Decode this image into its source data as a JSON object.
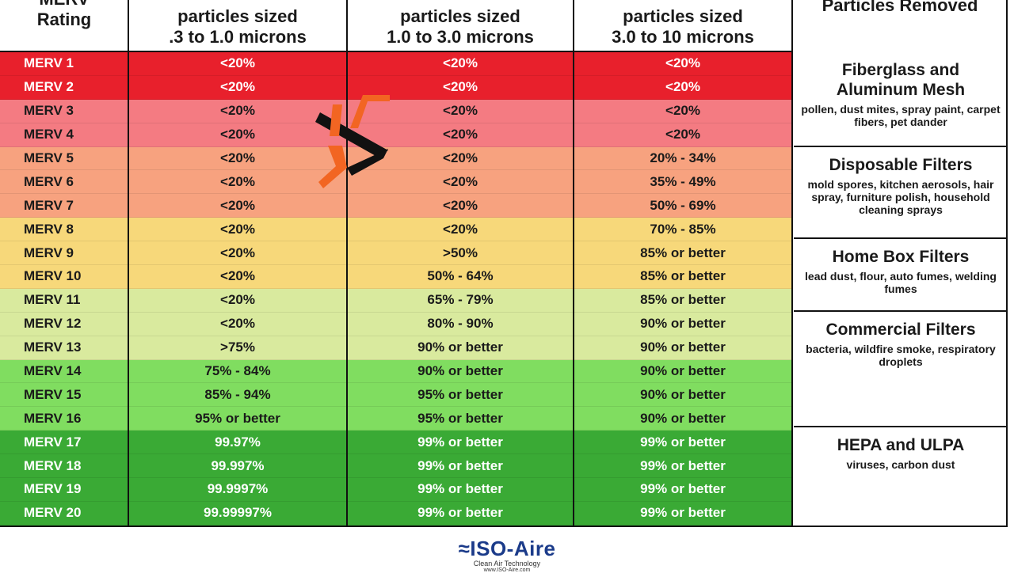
{
  "header": {
    "rating": "Rating",
    "rating_cut": "MERV",
    "col1_line1": "particles sized",
    "col1_line2": ".3 to 1.0 microns",
    "col2_line1": "particles sized",
    "col2_line2": "1.0 to 3.0 microns",
    "col3_line1": "particles sized",
    "col3_line2": "3.0 to 10 microns",
    "col4_line1": "Particles Removed"
  },
  "rows": [
    {
      "merv": "MERV 1",
      "c1": "<20%",
      "c2": "<20%",
      "c3": "<20%",
      "bg": "#e8202c",
      "tone": "light"
    },
    {
      "merv": "MERV 2",
      "c1": "<20%",
      "c2": "<20%",
      "c3": "<20%",
      "bg": "#e8202c",
      "tone": "light"
    },
    {
      "merv": "MERV 3",
      "c1": "<20%",
      "c2": "<20%",
      "c3": "<20%",
      "bg": "#f47b82",
      "tone": "dark"
    },
    {
      "merv": "MERV 4",
      "c1": "<20%",
      "c2": "<20%",
      "c3": "<20%",
      "bg": "#f47b82",
      "tone": "dark"
    },
    {
      "merv": "MERV 5",
      "c1": "<20%",
      "c2": "<20%",
      "c3": "20% - 34%",
      "bg": "#f7a27f",
      "tone": "dark"
    },
    {
      "merv": "MERV 6",
      "c1": "<20%",
      "c2": "<20%",
      "c3": "35% - 49%",
      "bg": "#f7a27f",
      "tone": "dark"
    },
    {
      "merv": "MERV 7",
      "c1": "<20%",
      "c2": "<20%",
      "c3": "50% - 69%",
      "bg": "#f7a27f",
      "tone": "dark"
    },
    {
      "merv": "MERV 8",
      "c1": "<20%",
      "c2": "<20%",
      "c3": "70% - 85%",
      "bg": "#f7d87a",
      "tone": "dark"
    },
    {
      "merv": "MERV 9",
      "c1": "<20%",
      "c2": ">50%",
      "c3": "85% or better",
      "bg": "#f7d87a",
      "tone": "dark"
    },
    {
      "merv": "MERV 10",
      "c1": "<20%",
      "c2": "50% - 64%",
      "c3": "85% or better",
      "bg": "#f7d87a",
      "tone": "dark"
    },
    {
      "merv": "MERV 11",
      "c1": "<20%",
      "c2": "65% - 79%",
      "c3": "85% or better",
      "bg": "#d9ea9e",
      "tone": "dark"
    },
    {
      "merv": "MERV 12",
      "c1": "<20%",
      "c2": "80% - 90%",
      "c3": "90% or better",
      "bg": "#d9ea9e",
      "tone": "dark"
    },
    {
      "merv": "MERV 13",
      "c1": ">75%",
      "c2": "90% or better",
      "c3": "90% or better",
      "bg": "#d9ea9e",
      "tone": "dark"
    },
    {
      "merv": "MERV 14",
      "c1": "75% - 84%",
      "c2": "90% or better",
      "c3": "90% or better",
      "bg": "#80dd60",
      "tone": "dark"
    },
    {
      "merv": "MERV 15",
      "c1": "85% - 94%",
      "c2": "95% or better",
      "c3": "90% or better",
      "bg": "#80dd60",
      "tone": "dark"
    },
    {
      "merv": "MERV 16",
      "c1": "95% or better",
      "c2": "95% or better",
      "c3": "90% or better",
      "bg": "#80dd60",
      "tone": "dark"
    },
    {
      "merv": "MERV 17",
      "c1": "99.97%",
      "c2": "99% or better",
      "c3": "99% or better",
      "bg": "#3aaa35",
      "tone": "light"
    },
    {
      "merv": "MERV 18",
      "c1": "99.997%",
      "c2": "99% or better",
      "c3": "99% or better",
      "bg": "#3aaa35",
      "tone": "light"
    },
    {
      "merv": "MERV 19",
      "c1": "99.9997%",
      "c2": "99% or better",
      "c3": "99% or better",
      "bg": "#3aaa35",
      "tone": "light"
    },
    {
      "merv": "MERV 20",
      "c1": "99.99997%",
      "c2": "99% or better",
      "c3": "99% or better",
      "bg": "#3aaa35",
      "tone": "light"
    }
  ],
  "filter_types": [
    {
      "name": "Fiberglass and Aluminum Mesh",
      "desc": "pollen, dust mites, spray paint, carpet fibers, pet dander"
    },
    {
      "name": "Disposable Filters",
      "desc": "mold spores, kitchen aerosols, hair spray, furniture polish, household cleaning sprays"
    },
    {
      "name": "Home Box Filters",
      "desc": "lead dust, flour, auto fumes, welding fumes"
    },
    {
      "name": "Commercial Filters",
      "desc": "bacteria, wildfire smoke, respiratory droplets"
    },
    {
      "name": "HEPA and ULPA",
      "desc": "viruses, carbon dust"
    }
  ],
  "footer": {
    "logo_wave": "≈",
    "logo_name": "ISO-Aire",
    "tagline": "Clean Air Technology",
    "url": "www.ISO-Aire.com"
  },
  "colors": {
    "red": "#e8202c",
    "pink": "#f47b82",
    "salmon": "#f7a27f",
    "yellow": "#f7d87a",
    "light_green": "#d9ea9e",
    "green": "#80dd60",
    "dark_green": "#3aaa35",
    "logo_blue": "#1b3b8a",
    "watermark_orange": "#f26522"
  }
}
